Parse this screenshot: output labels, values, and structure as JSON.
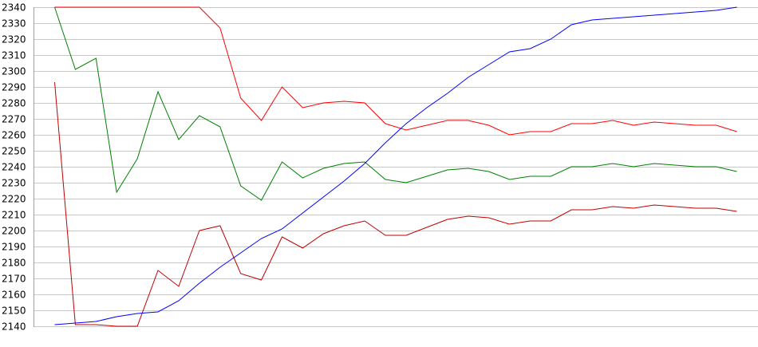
{
  "chart_data": {
    "type": "line",
    "title": "",
    "xlabel": "",
    "ylabel": "",
    "ylim": [
      2140,
      2340
    ],
    "yticks": [
      2140,
      2150,
      2160,
      2170,
      2180,
      2190,
      2200,
      2210,
      2220,
      2230,
      2240,
      2250,
      2260,
      2270,
      2280,
      2290,
      2300,
      2310,
      2320,
      2330,
      2340
    ],
    "y_tick_labels": [
      "2140",
      "2150",
      "2160",
      "2170",
      "2180",
      "2190",
      "2200",
      "2210",
      "2220",
      "2230",
      "2240",
      "2250",
      "2260",
      "2270",
      "2280",
      "2290",
      "2300",
      "2310",
      "2320",
      "2330",
      "2340"
    ],
    "grid": true,
    "x": [
      1,
      2,
      3,
      4,
      5,
      6,
      7,
      8,
      9,
      10,
      11,
      12,
      13,
      14,
      15,
      16,
      17,
      18,
      19,
      20,
      21,
      22,
      23,
      24,
      25,
      26,
      27,
      28,
      29,
      30,
      31,
      32,
      33,
      34
    ],
    "xlim": [
      0,
      35
    ],
    "series": [
      {
        "color": "#ff0000",
        "values": [
          2340,
          2340,
          2340,
          2340,
          2340,
          2340,
          2340,
          2340,
          2327,
          2283,
          2269,
          2290,
          2277,
          2280,
          2281,
          2280,
          2267,
          2263,
          2266,
          2269,
          2269,
          2266,
          2260,
          2262,
          2262,
          2267,
          2267,
          2269,
          2266,
          2268,
          2267,
          2266,
          2266,
          2262
        ]
      },
      {
        "color": "#008000",
        "values": [
          2340,
          2301,
          2308,
          2224,
          2245,
          2287,
          2257,
          2272,
          2265,
          2228,
          2219,
          2243,
          2233,
          2239,
          2242,
          2243,
          2232,
          2230,
          2234,
          2238,
          2239,
          2237,
          2232,
          2234,
          2234,
          2240,
          2240,
          2242,
          2240,
          2242,
          2241,
          2240,
          2240,
          2237
        ]
      },
      {
        "color": "#c00000",
        "values": [
          2293,
          2141,
          2141,
          2140,
          2140,
          2175,
          2165,
          2200,
          2203,
          2173,
          2169,
          2196,
          2189,
          2198,
          2203,
          2206,
          2197,
          2197,
          2202,
          2207,
          2209,
          2208,
          2204,
          2206,
          2206,
          2213,
          2213,
          2215,
          2214,
          2216,
          2215,
          2214,
          2214,
          2212
        ]
      },
      {
        "color": "#0000ff",
        "values": [
          2141,
          2142,
          2143,
          2146,
          2148,
          2149,
          2156,
          2167,
          2177,
          2186,
          2195,
          2201,
          2211,
          2221,
          2231,
          2242,
          2255,
          2267,
          2277,
          2286,
          2296,
          2304,
          2312,
          2314,
          2320,
          2329,
          2332,
          2333,
          2334,
          2335,
          2336,
          2337,
          2338,
          2340
        ]
      }
    ]
  }
}
